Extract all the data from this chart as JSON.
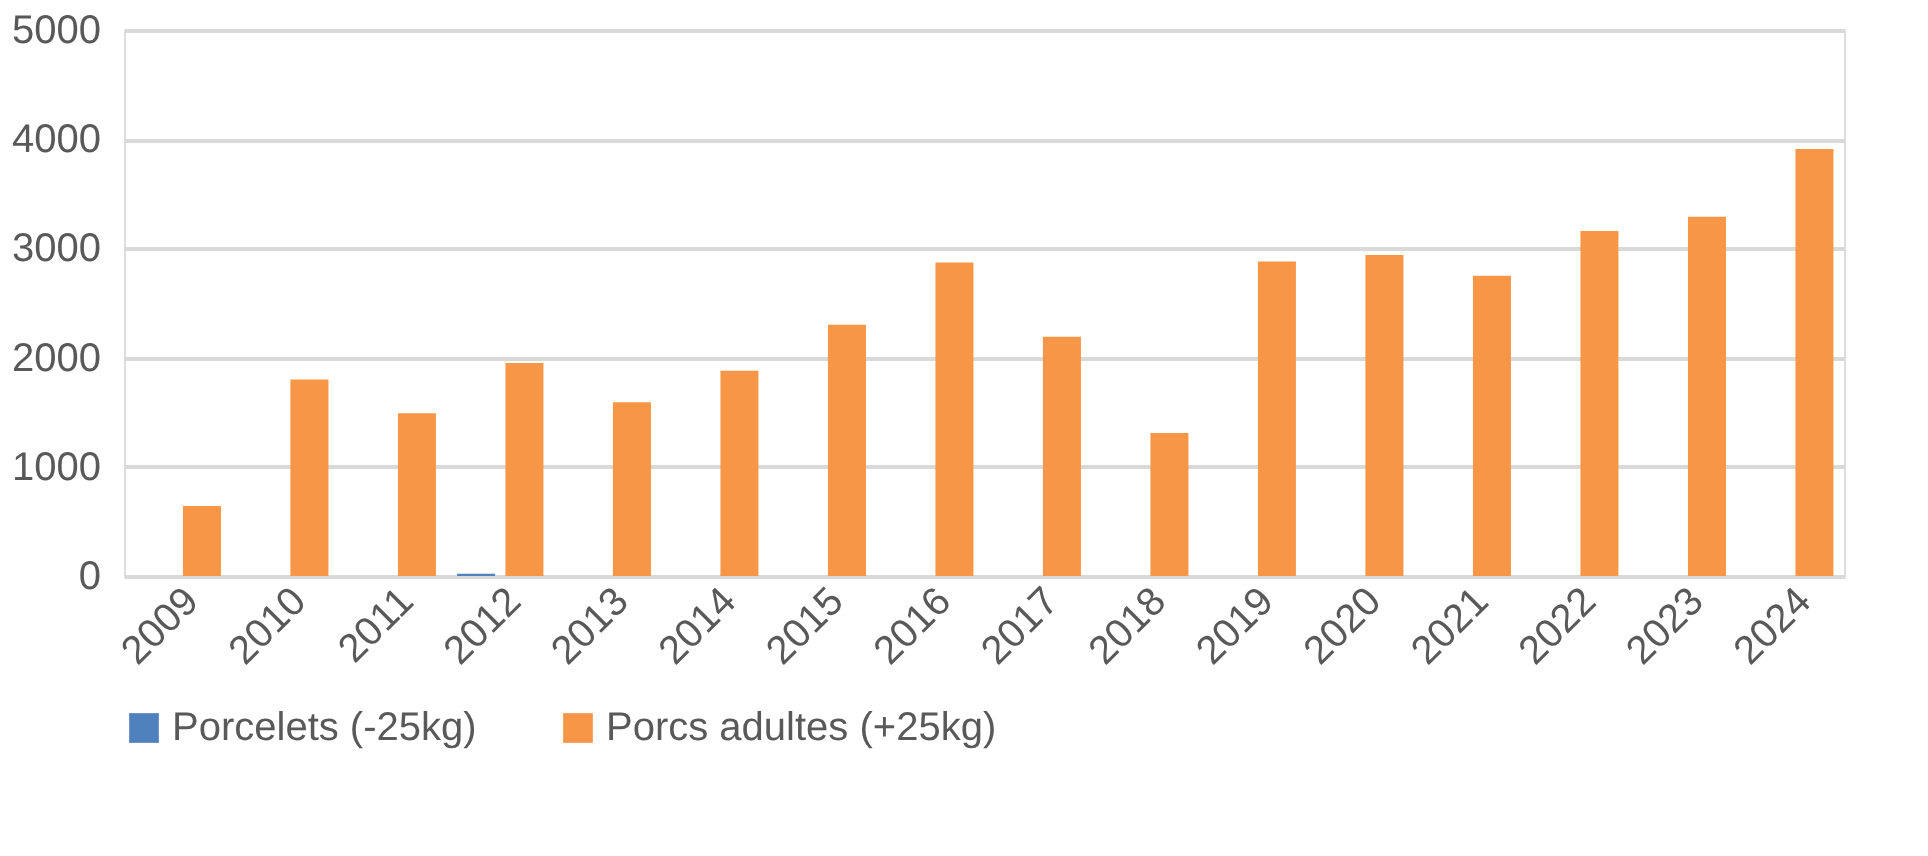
{
  "chart_data": {
    "type": "bar",
    "categories": [
      "2009",
      "2010",
      "2011",
      "2012",
      "2013",
      "2014",
      "2015",
      "2016",
      "2017",
      "2018",
      "2019",
      "2020",
      "2021",
      "2022",
      "2023",
      "2024"
    ],
    "series": [
      {
        "name": "Porcelets (-25kg)",
        "color": "#4f81bd",
        "values": [
          0,
          0,
          0,
          20,
          0,
          0,
          0,
          0,
          0,
          0,
          0,
          0,
          0,
          0,
          0,
          0
        ]
      },
      {
        "name": "Porcs adultes (+25kg)",
        "color": "#f79646",
        "values": [
          640,
          1800,
          1490,
          1950,
          1590,
          1880,
          2300,
          2870,
          2190,
          1310,
          2880,
          2940,
          2750,
          3160,
          3290,
          3910
        ]
      }
    ],
    "ylim": [
      0,
      5000
    ],
    "yticks": [
      0,
      1000,
      2000,
      3000,
      4000,
      5000
    ],
    "grid": "y",
    "legend": "bottom"
  }
}
